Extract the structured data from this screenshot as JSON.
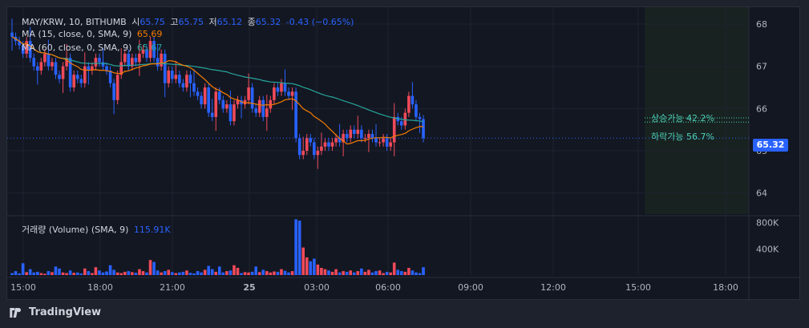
{
  "legend": {
    "symbol": "MAY/KRW, 10, BITHUMB",
    "open_label": "시",
    "open": "65.75",
    "high_label": "고",
    "high": "65.75",
    "low_label": "저",
    "low": "65.12",
    "close_label": "종",
    "close": "65.32",
    "change": "-0.43 (−0.65%)",
    "ma1_label": "MA (15, close, 0, SMA, 9)",
    "ma1_value": "65.69",
    "ma2_label": "MA (60, close, 0, SMA, 9)",
    "ma2_value": "65.67",
    "volume_label": "거래량 (Volume) (SMA, 9)",
    "volume_value": "115.91K"
  },
  "annotations": {
    "up": "상승가능 42.2%",
    "down": "하락가능 56.7%"
  },
  "last_price_tag": "65.32",
  "brand": "TradingView",
  "colors": {
    "up": "#f04a5a",
    "down": "#2962ff",
    "ma15": "#f57c00",
    "ma60": "#26a69a",
    "bg": "#131722"
  },
  "chart_data": {
    "type": "candlestick",
    "x_ticks": [
      "15:00",
      "18:00",
      "21:00",
      "25",
      "03:00",
      "06:00",
      "09:00",
      "12:00",
      "15:00",
      "18:00"
    ],
    "y_ticks": [
      64,
      65,
      66,
      67,
      68
    ],
    "ylim": [
      63.5,
      68.4
    ],
    "volume_ticks": [
      "400K",
      "800K"
    ],
    "volume_ylim": [
      0,
      880
    ],
    "close": [
      67.7,
      67.6,
      67.5,
      67.3,
      67.6,
      67.2,
      67.0,
      66.9,
      67.1,
      67.3,
      67.0,
      67.1,
      66.8,
      66.7,
      67.0,
      67.2,
      66.5,
      66.8,
      66.7,
      66.6,
      67.0,
      66.9,
      67.0,
      67.2,
      67.1,
      67.0,
      66.9,
      66.6,
      66.2,
      66.8,
      67.1,
      67.3,
      67.0,
      67.2,
      67.1,
      67.3,
      67.4,
      67.2,
      67.6,
      67.2,
      67.0,
      67.3,
      66.6,
      66.9,
      66.7,
      66.8,
      66.6,
      66.5,
      66.8,
      66.6,
      66.4,
      66.3,
      66.1,
      66.5,
      65.9,
      65.8,
      66.4,
      66.2,
      66.0,
      66.1,
      65.7,
      66.1,
      66.2,
      66.1,
      66.2,
      66.5,
      66.0,
      65.9,
      66.2,
      65.8,
      66.0,
      66.2,
      66.5,
      66.4,
      66.6,
      66.4,
      66.3,
      66.4,
      65.3,
      64.9,
      65.0,
      65.3,
      65.2,
      64.9,
      65.0,
      65.1,
      65.2,
      65.1,
      65.2,
      65.3,
      65.2,
      65.4,
      65.3,
      65.5,
      65.4,
      65.5,
      65.3,
      65.3,
      65.4,
      65.3,
      65.2,
      65.2,
      65.3,
      65.1,
      65.2,
      65.8,
      65.7,
      65.6,
      65.9,
      66.3,
      66.1,
      65.8,
      65.75,
      65.3
    ],
    "volume": [
      30,
      60,
      25,
      180,
      45,
      90,
      40,
      50,
      30,
      20,
      60,
      45,
      130,
      100,
      40,
      30,
      70,
      35,
      40,
      25,
      100,
      60,
      30,
      120,
      70,
      40,
      55,
      150,
      80,
      40,
      30,
      50,
      60,
      45,
      35,
      90,
      60,
      40,
      230,
      200,
      70,
      40,
      60,
      80,
      45,
      30,
      40,
      50,
      70,
      35,
      25,
      60,
      40,
      80,
      140,
      90,
      50,
      130,
      40,
      60,
      70,
      150,
      110,
      30,
      45,
      40,
      50,
      130,
      45,
      80,
      60,
      40,
      55,
      50,
      90,
      65,
      40,
      60,
      850,
      830,
      420,
      270,
      210,
      250,
      160,
      110,
      90,
      70,
      50,
      90,
      40,
      60,
      50,
      70,
      40,
      60,
      100,
      50,
      80,
      40,
      60,
      70,
      30,
      50,
      40,
      190,
      80,
      60,
      50,
      110,
      70,
      40,
      30,
      120
    ],
    "prob_up": 42.2,
    "prob_down": 56.7
  }
}
